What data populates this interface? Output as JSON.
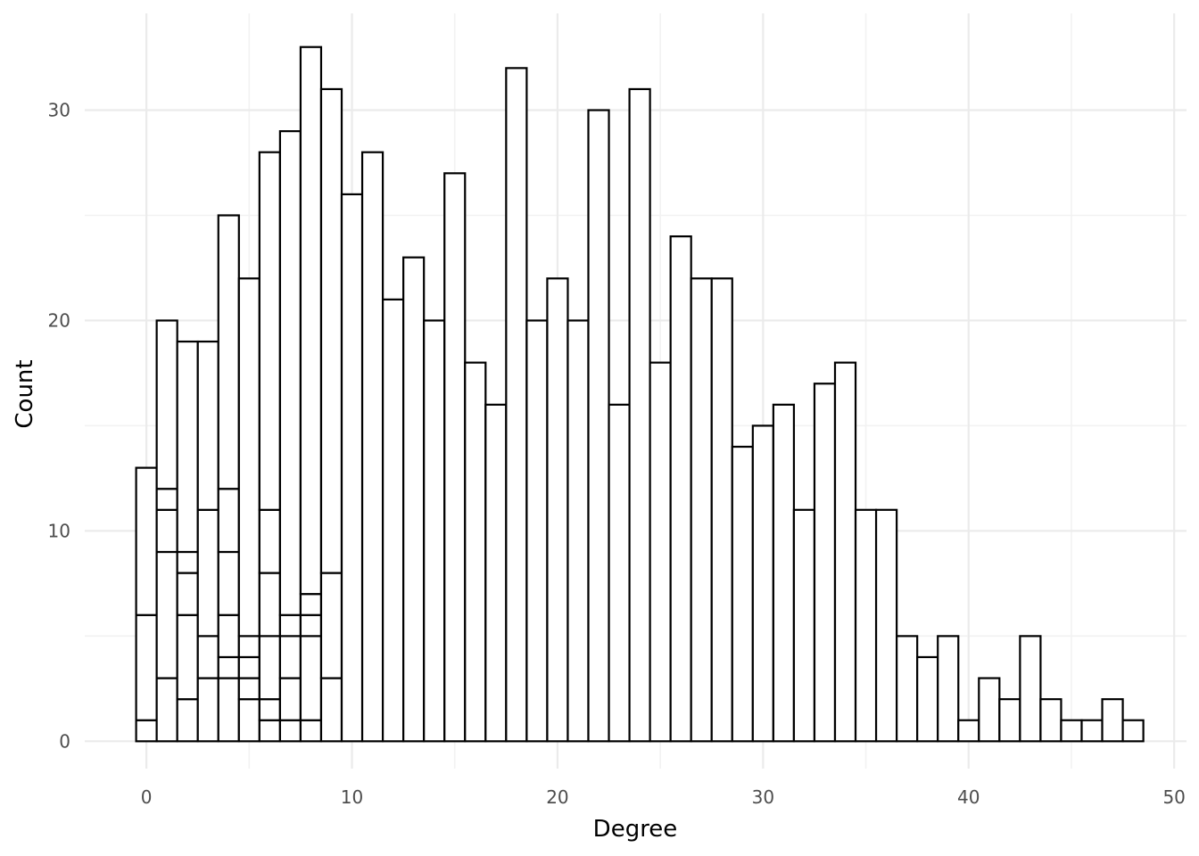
{
  "chart_data": {
    "type": "bar",
    "subtype": "stacked-histogram",
    "xlabel": "Degree",
    "ylabel": "Count",
    "xlim": [
      -3,
      50.6
    ],
    "ylim": [
      -1.3,
      34.6
    ],
    "x_ticks": [
      0,
      10,
      20,
      30,
      40,
      50
    ],
    "y_ticks": [
      0,
      10,
      20,
      30
    ],
    "grid": true,
    "bin_width": 1,
    "stacks": [
      {
        "x": 0,
        "boundaries": [
          1,
          6,
          13
        ]
      },
      {
        "x": 1,
        "boundaries": [
          3,
          9,
          11,
          12,
          20
        ]
      },
      {
        "x": 2,
        "boundaries": [
          2,
          6,
          8,
          9,
          19
        ]
      },
      {
        "x": 3,
        "boundaries": [
          3,
          5,
          11,
          19
        ]
      },
      {
        "x": 4,
        "boundaries": [
          3,
          4,
          6,
          9,
          12,
          25
        ]
      },
      {
        "x": 5,
        "boundaries": [
          2,
          3,
          4,
          5,
          22
        ]
      },
      {
        "x": 6,
        "boundaries": [
          1,
          2,
          5,
          8,
          11,
          28
        ]
      },
      {
        "x": 7,
        "boundaries": [
          1,
          3,
          5,
          6,
          29
        ]
      },
      {
        "x": 8,
        "boundaries": [
          1,
          5,
          6,
          7,
          33
        ]
      },
      {
        "x": 9,
        "boundaries": [
          3,
          8,
          31
        ]
      },
      {
        "x": 10,
        "boundaries": [
          26
        ]
      },
      {
        "x": 11,
        "boundaries": [
          28
        ]
      },
      {
        "x": 12,
        "boundaries": [
          21
        ]
      },
      {
        "x": 13,
        "boundaries": [
          23
        ]
      },
      {
        "x": 14,
        "boundaries": [
          20
        ]
      },
      {
        "x": 15,
        "boundaries": [
          27
        ]
      },
      {
        "x": 16,
        "boundaries": [
          18
        ]
      },
      {
        "x": 17,
        "boundaries": [
          16
        ]
      },
      {
        "x": 18,
        "boundaries": [
          32
        ]
      },
      {
        "x": 19,
        "boundaries": [
          20
        ]
      },
      {
        "x": 20,
        "boundaries": [
          22
        ]
      },
      {
        "x": 21,
        "boundaries": [
          20
        ]
      },
      {
        "x": 22,
        "boundaries": [
          30
        ]
      },
      {
        "x": 23,
        "boundaries": [
          16
        ]
      },
      {
        "x": 24,
        "boundaries": [
          31
        ]
      },
      {
        "x": 25,
        "boundaries": [
          18
        ]
      },
      {
        "x": 26,
        "boundaries": [
          24
        ]
      },
      {
        "x": 27,
        "boundaries": [
          22
        ]
      },
      {
        "x": 28,
        "boundaries": [
          22
        ]
      },
      {
        "x": 29,
        "boundaries": [
          14
        ]
      },
      {
        "x": 30,
        "boundaries": [
          15
        ]
      },
      {
        "x": 31,
        "boundaries": [
          16
        ]
      },
      {
        "x": 32,
        "boundaries": [
          11
        ]
      },
      {
        "x": 33,
        "boundaries": [
          17
        ]
      },
      {
        "x": 34,
        "boundaries": [
          18
        ]
      },
      {
        "x": 35,
        "boundaries": [
          11
        ]
      },
      {
        "x": 36,
        "boundaries": [
          11
        ]
      },
      {
        "x": 37,
        "boundaries": [
          5
        ]
      },
      {
        "x": 38,
        "boundaries": [
          4
        ]
      },
      {
        "x": 39,
        "boundaries": [
          5
        ]
      },
      {
        "x": 40,
        "boundaries": [
          1
        ]
      },
      {
        "x": 41,
        "boundaries": [
          3
        ]
      },
      {
        "x": 42,
        "boundaries": [
          2
        ]
      },
      {
        "x": 43,
        "boundaries": [
          5
        ]
      },
      {
        "x": 44,
        "boundaries": [
          2
        ]
      },
      {
        "x": 45,
        "boundaries": [
          1
        ]
      },
      {
        "x": 46,
        "boundaries": [
          1
        ]
      },
      {
        "x": 47,
        "boundaries": [
          2
        ]
      },
      {
        "x": 48,
        "boundaries": [
          1
        ]
      }
    ]
  }
}
